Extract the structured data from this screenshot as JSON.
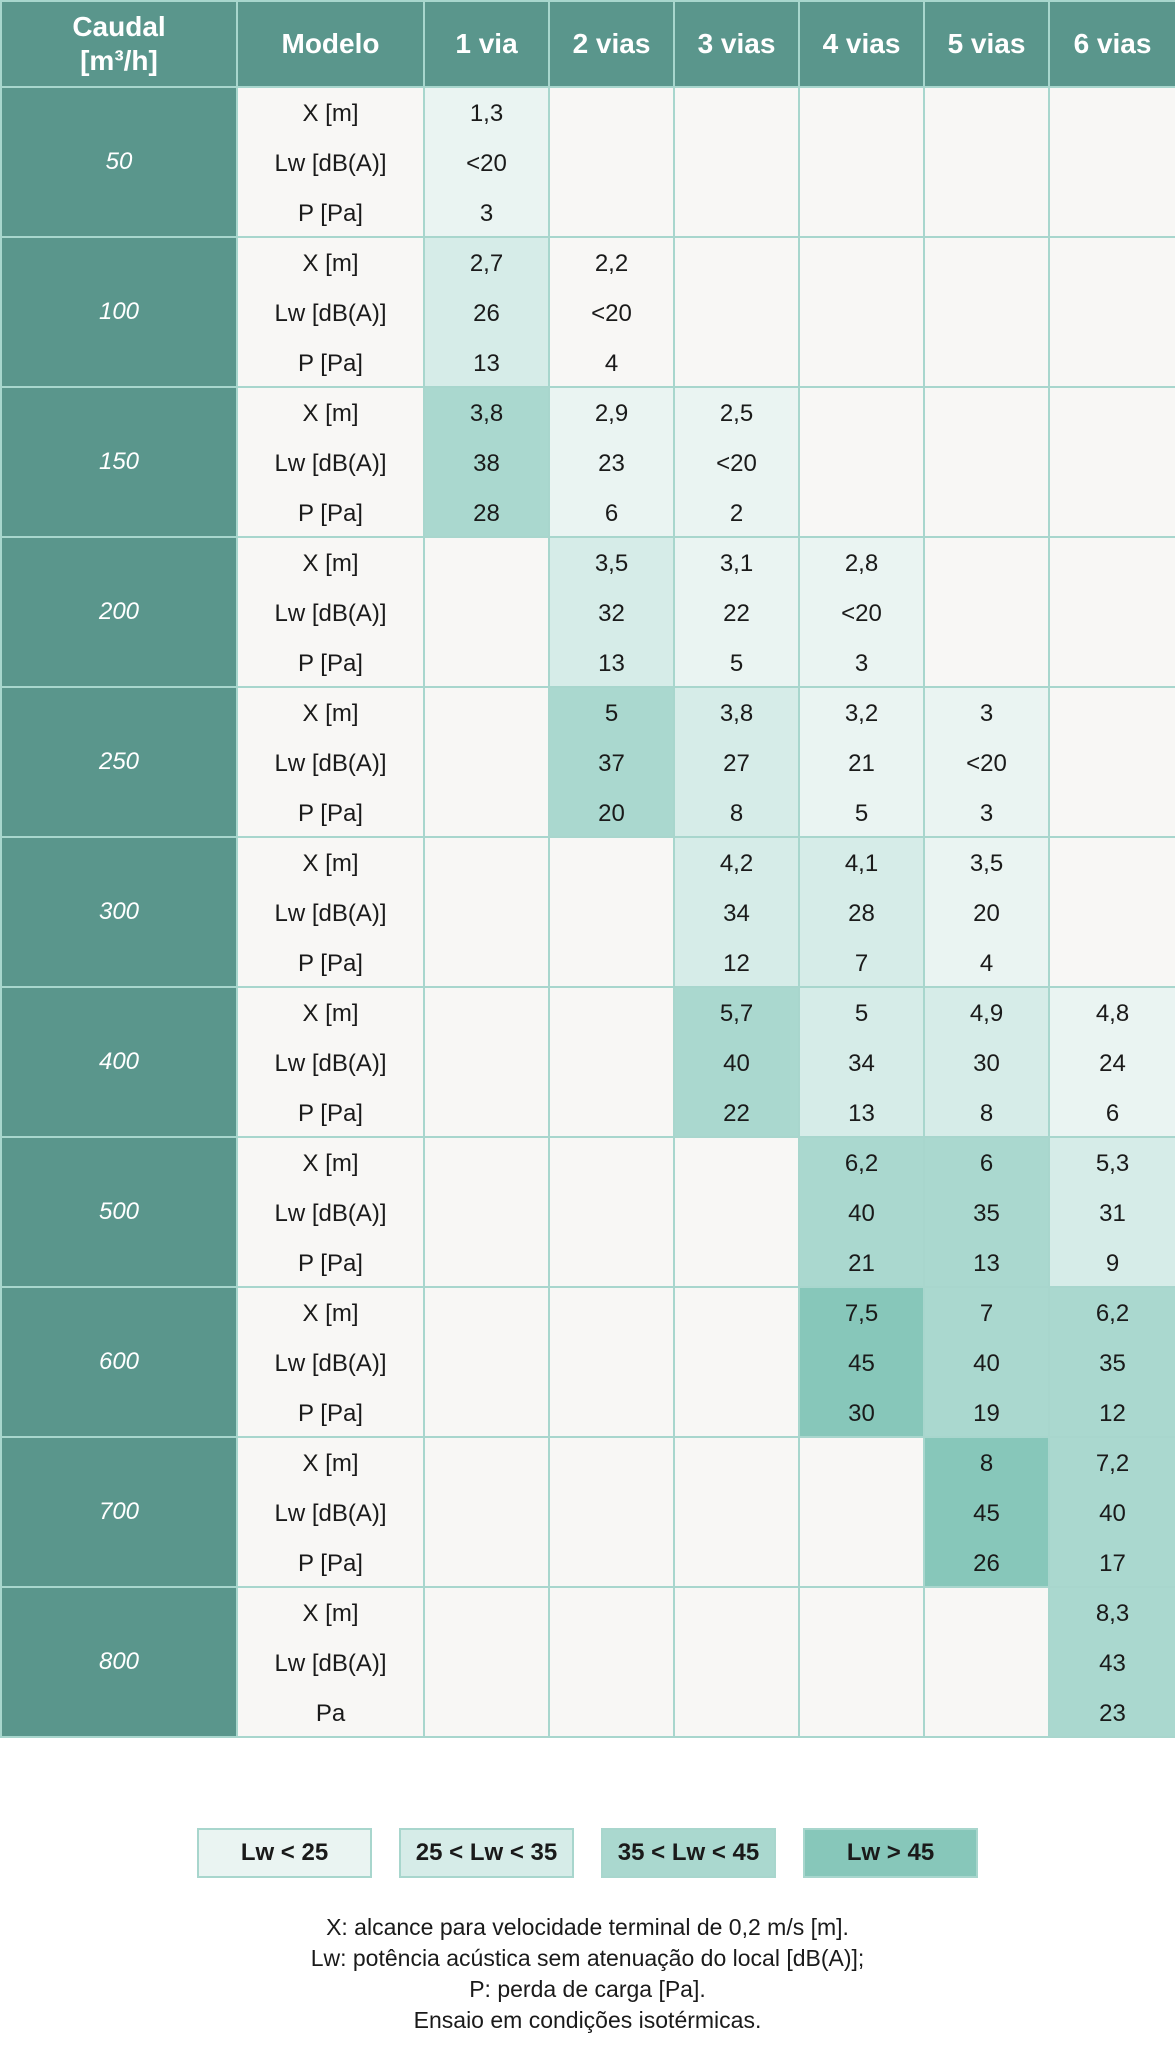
{
  "header": {
    "caudal_line1": "Caudal",
    "caudal_line2": "[m³/h]",
    "modelo": "Modelo",
    "columns": [
      "1 via",
      "2 vias",
      "3 vias",
      "4 vias",
      "5 vias",
      "6 vias"
    ]
  },
  "rows": [
    {
      "flow": "50",
      "labels": [
        "X [m]",
        "Lw [dB(A)]",
        "P [Pa]"
      ],
      "cells": [
        [
          "1,3",
          "<20",
          "3"
        ],
        null,
        null,
        null,
        null,
        null
      ],
      "shade": [
        1,
        0,
        0,
        0,
        0,
        0
      ]
    },
    {
      "flow": "100",
      "labels": [
        "X [m]",
        "Lw [dB(A)]",
        "P [Pa]"
      ],
      "cells": [
        [
          "2,7",
          "26",
          "13"
        ],
        [
          "2,2",
          "<20",
          "4"
        ],
        null,
        null,
        null,
        null
      ],
      "shade": [
        2,
        0,
        0,
        0,
        0,
        0
      ]
    },
    {
      "flow": "150",
      "labels": [
        "X [m]",
        "Lw [dB(A)]",
        "P [Pa]"
      ],
      "cells": [
        [
          "3,8",
          "38",
          "28"
        ],
        [
          "2,9",
          "23",
          "6"
        ],
        [
          "2,5",
          "<20",
          "2"
        ],
        null,
        null,
        null
      ],
      "shade": [
        3,
        1,
        1,
        0,
        0,
        0
      ]
    },
    {
      "flow": "200",
      "labels": [
        "X [m]",
        "Lw [dB(A)]",
        "P [Pa]"
      ],
      "cells": [
        null,
        [
          "3,5",
          "32",
          "13"
        ],
        [
          "3,1",
          "22",
          "5"
        ],
        [
          "2,8",
          "<20",
          "3"
        ],
        null,
        null
      ],
      "shade": [
        0,
        2,
        1,
        1,
        0,
        0
      ]
    },
    {
      "flow": "250",
      "labels": [
        "X [m]",
        "Lw [dB(A)]",
        "P [Pa]"
      ],
      "cells": [
        null,
        [
          "5",
          "37",
          "20"
        ],
        [
          "3,8",
          "27",
          "8"
        ],
        [
          "3,2",
          "21",
          "5"
        ],
        [
          "3",
          "<20",
          "3"
        ],
        null
      ],
      "shade": [
        0,
        3,
        2,
        1,
        1,
        0
      ]
    },
    {
      "flow": "300",
      "labels": [
        "X [m]",
        "Lw [dB(A)]",
        "P [Pa]"
      ],
      "cells": [
        null,
        null,
        [
          "4,2",
          "34",
          "12"
        ],
        [
          "4,1",
          "28",
          "7"
        ],
        [
          "3,5",
          "20",
          "4"
        ],
        null
      ],
      "shade": [
        0,
        0,
        2,
        2,
        1,
        0
      ]
    },
    {
      "flow": "400",
      "labels": [
        "X [m]",
        "Lw [dB(A)]",
        "P [Pa]"
      ],
      "cells": [
        null,
        null,
        [
          "5,7",
          "40",
          "22"
        ],
        [
          "5",
          "34",
          "13"
        ],
        [
          "4,9",
          "30",
          "8"
        ],
        [
          "4,8",
          "24",
          "6"
        ]
      ],
      "shade": [
        0,
        0,
        3,
        2,
        2,
        1
      ]
    },
    {
      "flow": "500",
      "labels": [
        "X [m]",
        "Lw [dB(A)]",
        "P [Pa]"
      ],
      "cells": [
        null,
        null,
        null,
        [
          "6,2",
          "40",
          "21"
        ],
        [
          "6",
          "35",
          "13"
        ],
        [
          "5,3",
          "31",
          "9"
        ]
      ],
      "shade": [
        0,
        0,
        0,
        3,
        3,
        2
      ]
    },
    {
      "flow": "600",
      "labels": [
        "X [m]",
        "Lw [dB(A)]",
        "P [Pa]"
      ],
      "cells": [
        null,
        null,
        null,
        [
          "7,5",
          "45",
          "30"
        ],
        [
          "7",
          "40",
          "19"
        ],
        [
          "6,2",
          "35",
          "12"
        ]
      ],
      "shade": [
        0,
        0,
        0,
        4,
        3,
        3
      ]
    },
    {
      "flow": "700",
      "labels": [
        "X [m]",
        "Lw [dB(A)]",
        "P [Pa]"
      ],
      "cells": [
        null,
        null,
        null,
        null,
        [
          "8",
          "45",
          "26"
        ],
        [
          "7,2",
          "40",
          "17"
        ]
      ],
      "shade": [
        0,
        0,
        0,
        0,
        4,
        3
      ]
    },
    {
      "flow": "800",
      "labels": [
        "X [m]",
        "Lw [dB(A)]",
        "Pa"
      ],
      "cells": [
        null,
        null,
        null,
        null,
        null,
        [
          "8,3",
          "43",
          "23"
        ]
      ],
      "shade": [
        0,
        0,
        0,
        0,
        0,
        3
      ]
    }
  ],
  "legend": [
    {
      "label": "Lw < 25",
      "color": "#eaf4f2"
    },
    {
      "label": "25 < Lw < 35",
      "color": "#d6ece8"
    },
    {
      "label": "35 < Lw < 45",
      "color": "#aad8cf"
    },
    {
      "label": "Lw > 45",
      "color": "#87c7ba"
    }
  ],
  "notes": [
    "X: alcance para velocidade terminal de 0,2 m/s [m].",
    "Lw: potência acústica sem atenuação do local [dB(A)];",
    "P: perda de carga [Pa].",
    "Ensaio em condições isotérmicas."
  ],
  "colors": {
    "header": "#5a968c",
    "empty": "#f8f7f5",
    "border": "#a8d6cd"
  }
}
